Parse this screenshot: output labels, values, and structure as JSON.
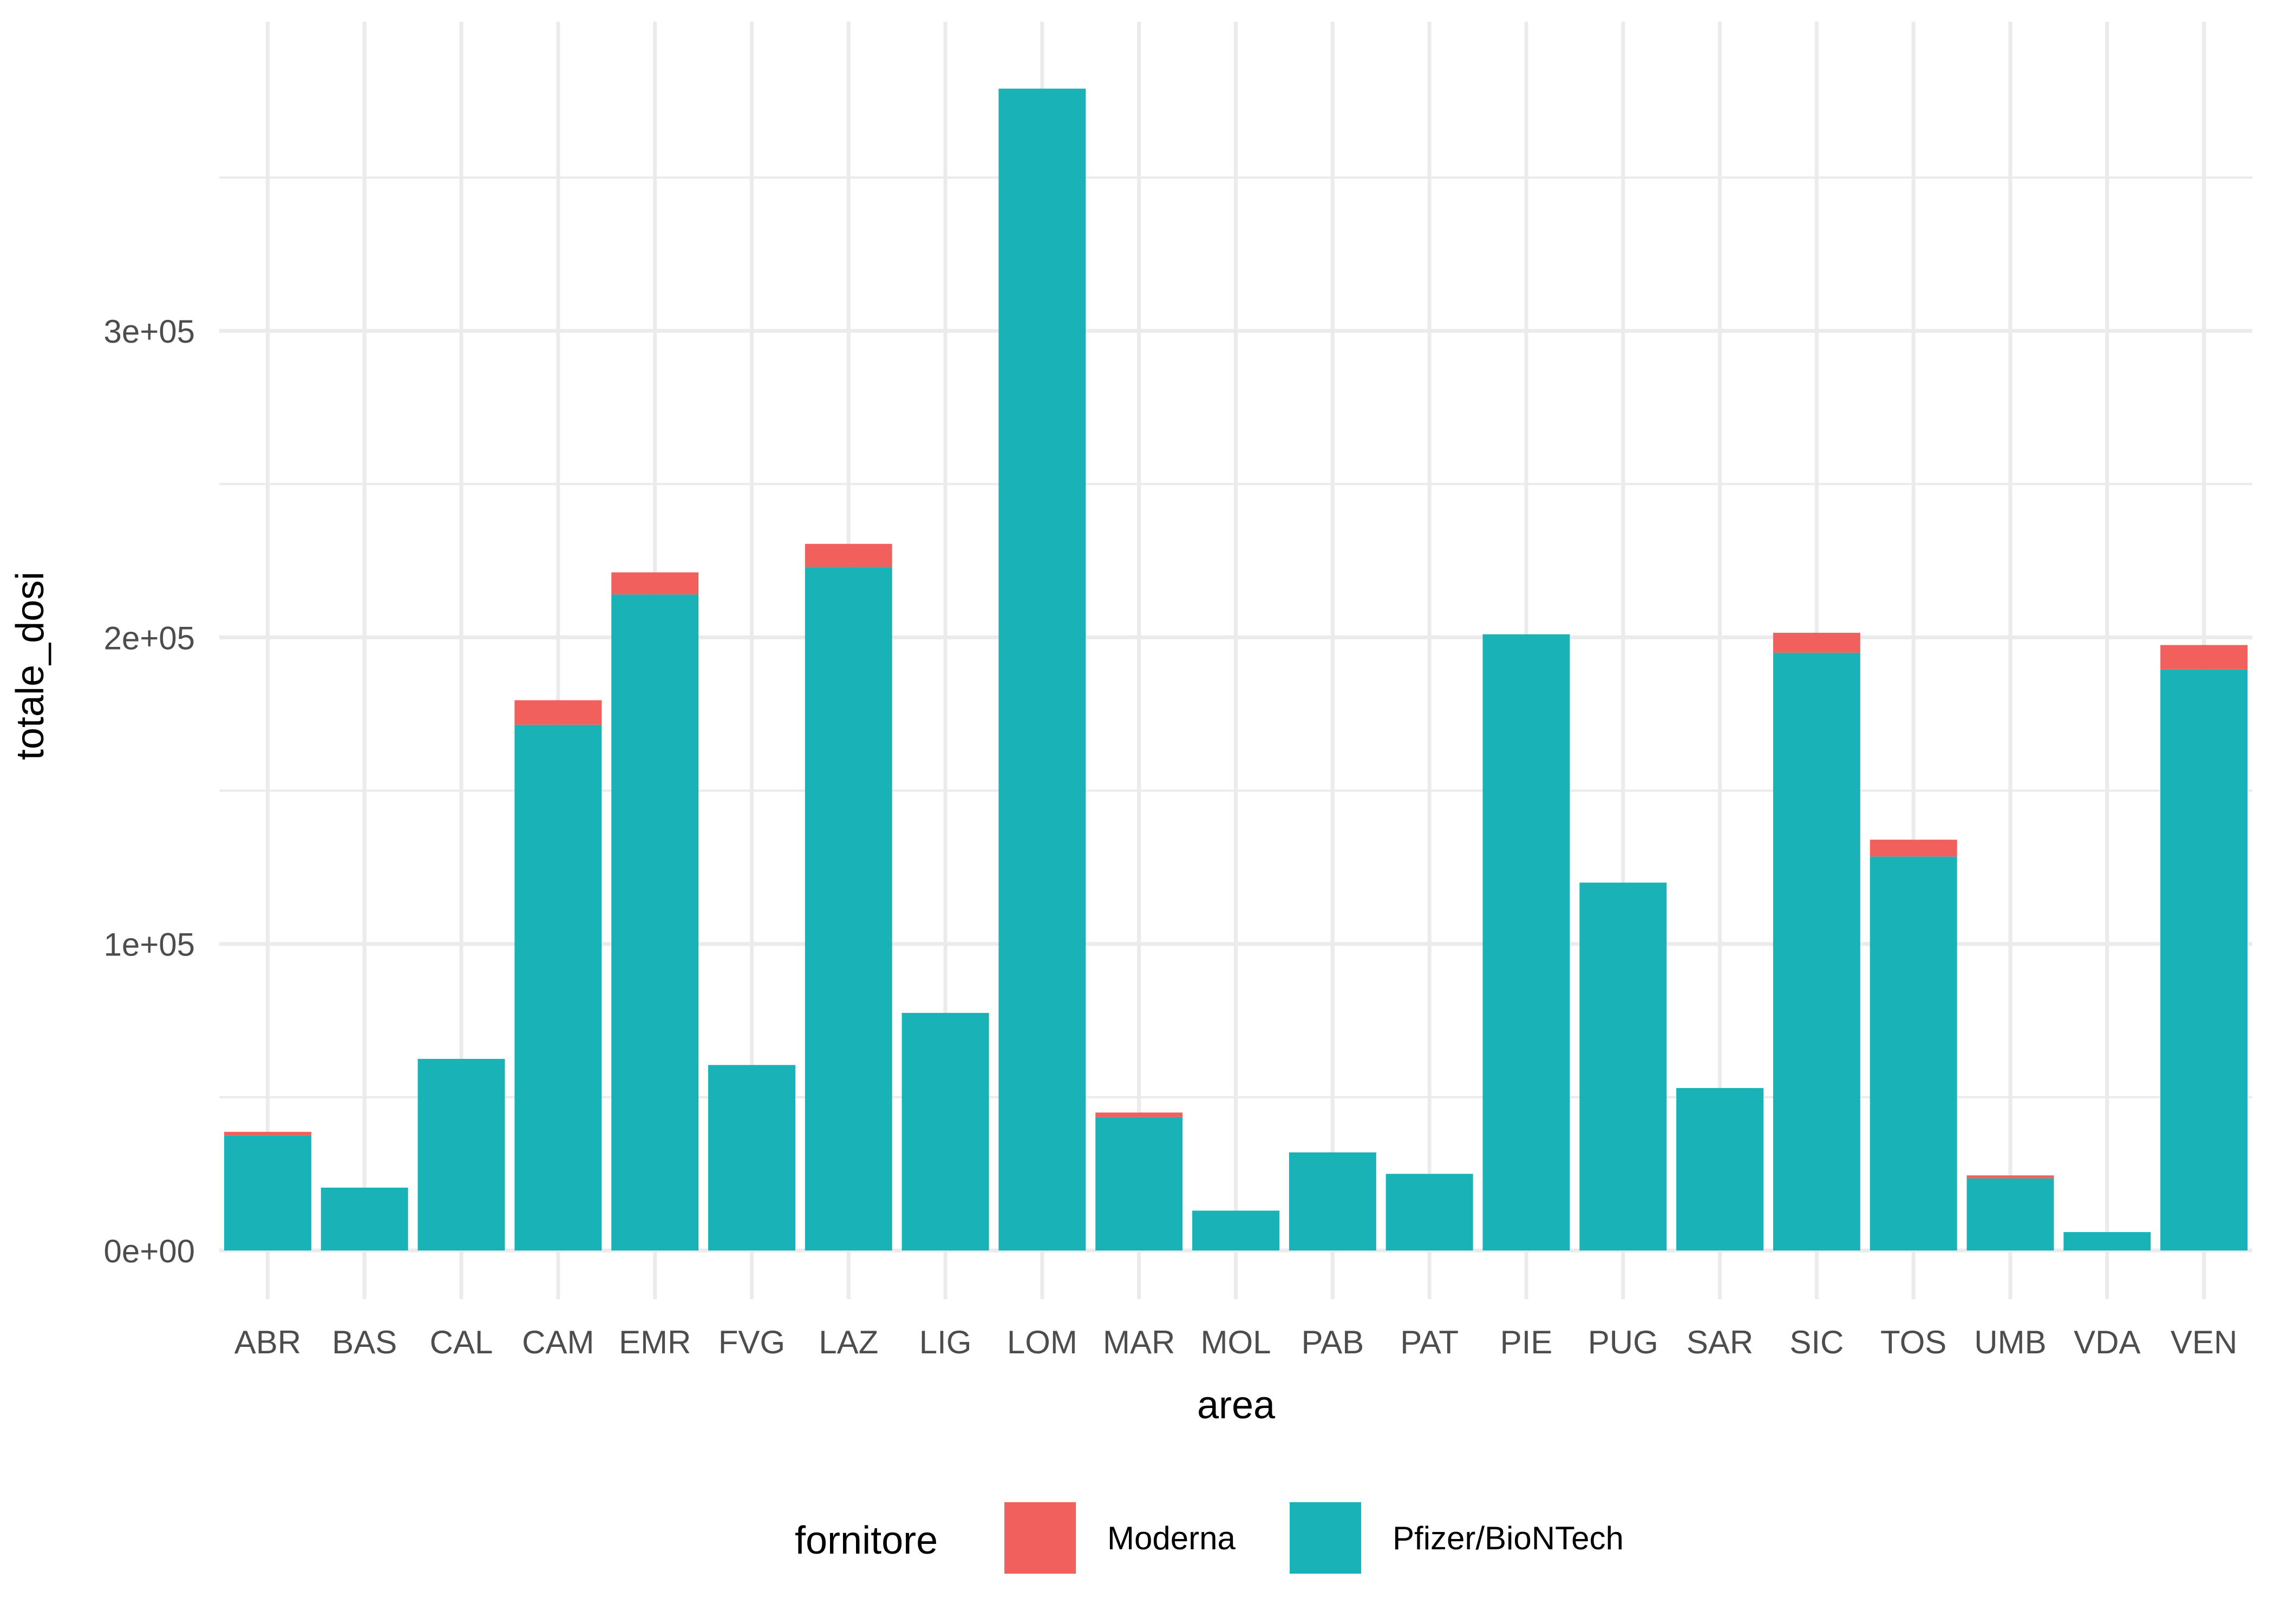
{
  "chart_data": {
    "type": "bar",
    "stacked": true,
    "title": "",
    "xlabel": "area",
    "ylabel": "totale_dosi",
    "categories": [
      "ABR",
      "BAS",
      "CAL",
      "CAM",
      "EMR",
      "FVG",
      "LAZ",
      "LIG",
      "LOM",
      "MAR",
      "MOL",
      "PAB",
      "PAT",
      "PIE",
      "PUG",
      "SAR",
      "SIC",
      "TOS",
      "UMB",
      "VDA",
      "VEN"
    ],
    "series": [
      {
        "name": "Pfizer/BioNTech",
        "color": "#19B3B7",
        "values": [
          37500,
          20500,
          62500,
          171500,
          214000,
          60500,
          223000,
          77500,
          379000,
          43500,
          13000,
          32000,
          25000,
          201000,
          120000,
          53000,
          195000,
          128500,
          23500,
          6000,
          189500
        ]
      },
      {
        "name": "Moderna",
        "color": "#F2605E",
        "values": [
          1200,
          0,
          0,
          8000,
          7200,
          0,
          7500,
          0,
          0,
          1500,
          0,
          0,
          0,
          0,
          0,
          0,
          6500,
          5500,
          1000,
          0,
          8000
        ]
      }
    ],
    "y_ticks": [
      0,
      100000,
      200000,
      300000
    ],
    "y_tick_labels": [
      "0e+00",
      "1e+05",
      "2e+05",
      "3e+05"
    ],
    "ylim": [
      -18000,
      397000
    ],
    "grid": true,
    "legend": {
      "title": "fornitore",
      "position": "bottom",
      "entries": [
        {
          "label": "Moderna",
          "color": "#F2605E"
        },
        {
          "label": "Pfizer/BioNTech",
          "color": "#19B3B7"
        }
      ]
    }
  }
}
